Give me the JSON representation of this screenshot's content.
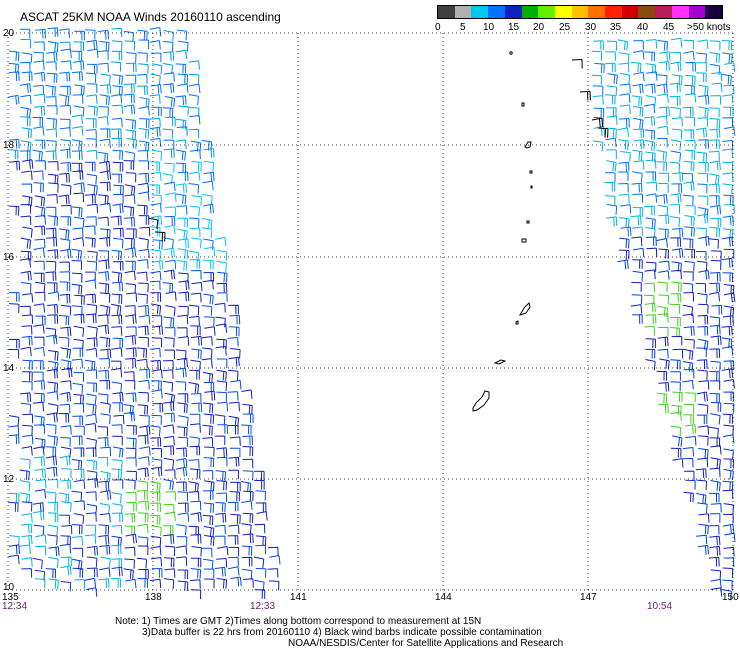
{
  "title": "ASCAT 25KM NOAA Winds 20160110 ascending",
  "colorbar": {
    "colors": [
      "#404040",
      "#b0b0b0",
      "#00c8f0",
      "#0070ff",
      "#1020c0",
      "#00b000",
      "#60f000",
      "#ffff00",
      "#ffc000",
      "#ff7000",
      "#ff2000",
      "#d00000",
      "#8a4a10",
      "#b81e5a",
      "#ff30ff",
      "#a000d0",
      "#1a0040"
    ],
    "labels": [
      "0",
      "5",
      "10",
      "15",
      "20",
      "25",
      "30",
      "35",
      "40",
      "45",
      ">50 knots"
    ]
  },
  "lat_labels": [
    "20",
    "18",
    "16",
    "14",
    "12",
    "10"
  ],
  "lon_labels": [
    "135",
    "138",
    "141",
    "144",
    "147",
    "150"
  ],
  "time_labels": [
    "12:34",
    "12:33",
    "10:54"
  ],
  "notes": [
    "Note: 1) Times are GMT 2)Times along bottom correspond to measurement at 15N",
    "3)Data buffer is 22 hrs from 20160110 4) Black wind barbs indicate possible contamination",
    "NOAA/NESDIS/Center for Satellite Applications and Research"
  ]
}
